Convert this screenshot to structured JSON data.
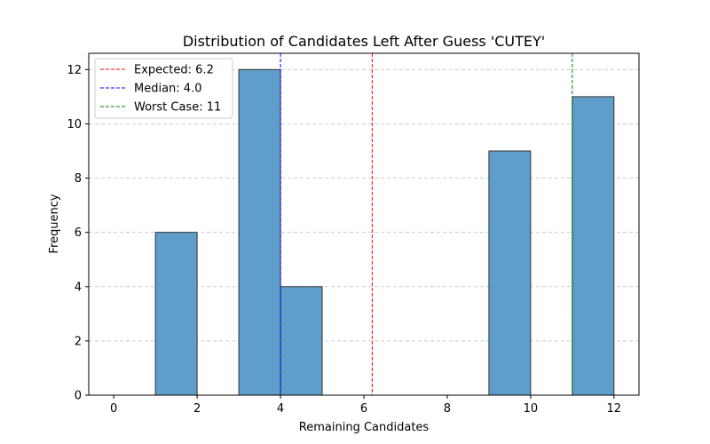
{
  "chart_data": {
    "type": "bar",
    "title": "Distribution of Candidates Left After Guess 'CUTEY'",
    "xlabel": "Remaining Candidates",
    "ylabel": "Frequency",
    "xlim": [
      -0.6,
      12.6
    ],
    "ylim": [
      0,
      12.6
    ],
    "xticks": [
      0,
      2,
      4,
      6,
      8,
      10,
      12
    ],
    "yticks": [
      0,
      2,
      4,
      6,
      8,
      10,
      12
    ],
    "bins": [
      {
        "x0": 1,
        "x1": 2,
        "value": 6
      },
      {
        "x0": 3,
        "x1": 4,
        "value": 12
      },
      {
        "x0": 4,
        "x1": 5,
        "value": 4
      },
      {
        "x0": 9,
        "x1": 10,
        "value": 9
      },
      {
        "x0": 11,
        "x1": 12,
        "value": 11
      }
    ],
    "bar_color": "#5f9ecb",
    "bar_edge_color": "#333333",
    "grid": "y-dashed",
    "legend_position": "top-left",
    "reference_lines": [
      {
        "label": "Expected: 6.2",
        "x": 6.2,
        "color": "#ff0000"
      },
      {
        "label": "Median: 4.0",
        "x": 4.0,
        "color": "#0000ff"
      },
      {
        "label": "Worst Case: 11",
        "x": 11,
        "color": "#008000"
      }
    ]
  }
}
